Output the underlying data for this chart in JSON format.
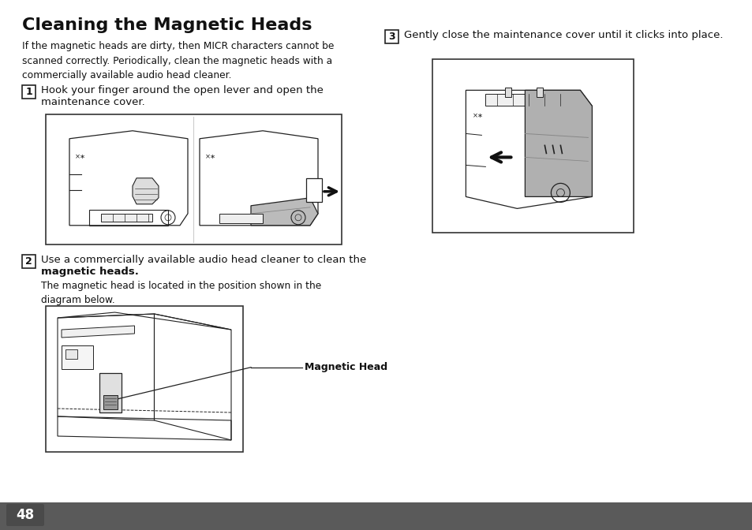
{
  "title": "Cleaning the Magnetic Heads",
  "bg_color": "#ffffff",
  "page_number": "48",
  "intro_text": "If the magnetic heads are dirty, then MICR characters cannot be\nscanned correctly. Periodically, clean the magnetic heads with a\ncommercially available audio head cleaner.",
  "step1_num": "1",
  "step1_bold": "Hook your finger around the open lever and open the",
  "step1_bold2": "maintenance cover.",
  "step2_num": "2",
  "step2_bold": "Use a commercially available audio head cleaner to clean the",
  "step2_bold2": "magnetic heads.",
  "step2_sub": "The magnetic head is located in the position shown in the\ndiagram below.",
  "step3_num": "3",
  "step3_text": "Gently close the maintenance cover until it clicks into place.",
  "label_magnetic_head": "Magnetic Head",
  "footer_color": "#5a5a5a",
  "footer_text_color": "#ffffff",
  "badge_color": "#4a4a4a"
}
